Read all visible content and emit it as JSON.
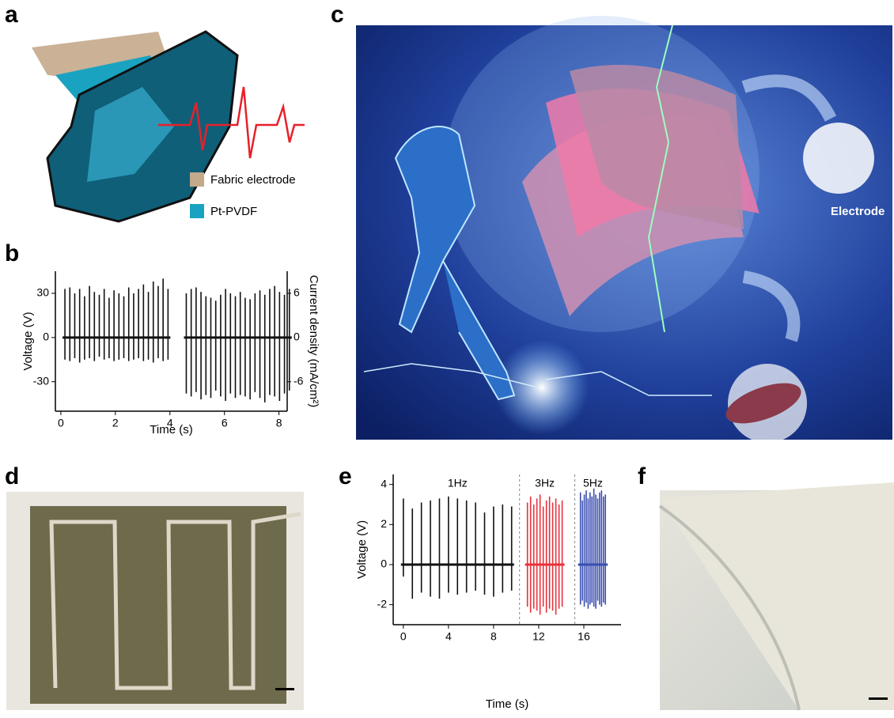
{
  "panel_labels": [
    "a",
    "b",
    "c",
    "d",
    "e",
    "f"
  ],
  "panel_a": {
    "legend": [
      "Fabric electrode",
      "Pt-PVDF"
    ]
  },
  "panel_c": {
    "callout": "Electrode"
  },
  "chart_data": [
    {
      "type": "spike",
      "xlabel": "Time (s)",
      "ylabel": "Voltage (V)",
      "y2label": "Current density (mA/cm²)",
      "xlim": [
        -0.2,
        8.3
      ],
      "xticks": [
        0,
        2,
        4,
        6,
        8
      ],
      "ylim": [
        -50,
        45
      ],
      "yticks": [
        -30,
        0,
        30
      ],
      "y2lim": [
        -10,
        9
      ],
      "y2ticks": [
        -6,
        0,
        6
      ],
      "series": [
        {
          "color": "#111111",
          "x": [
            0.15,
            0.33,
            0.51,
            0.69,
            0.87,
            1.05,
            1.23,
            1.41,
            1.59,
            1.77,
            1.95,
            2.13,
            2.31,
            2.49,
            2.67,
            2.85,
            3.03,
            3.21,
            3.39,
            3.57,
            3.75,
            3.93
          ],
          "peaks": [
            33,
            34,
            30,
            33,
            28,
            35,
            31,
            29,
            33,
            27,
            32,
            30,
            28,
            34,
            30,
            33,
            36,
            31,
            38,
            35,
            40,
            33
          ],
          "troughs": [
            -15,
            -16,
            -14,
            -17,
            -15,
            -14,
            -16,
            -13,
            -15,
            -14,
            -16,
            -15,
            -14,
            -16,
            -15,
            -14,
            -16,
            -15,
            -17,
            -14,
            -16,
            -15
          ]
        },
        {
          "color": "#111111",
          "x": [
            4.6,
            4.78,
            4.96,
            5.14,
            5.32,
            5.5,
            5.68,
            5.86,
            6.04,
            6.22,
            6.4,
            6.58,
            6.76,
            6.94,
            7.12,
            7.3,
            7.48,
            7.66,
            7.84,
            8.02,
            8.2,
            8.38
          ],
          "peaks": [
            30,
            33,
            34,
            31,
            28,
            27,
            25,
            29,
            33,
            30,
            28,
            31,
            27,
            26,
            30,
            32,
            29,
            33,
            35,
            31,
            29,
            33
          ],
          "troughs": [
            -38,
            -40,
            -37,
            -42,
            -39,
            -41,
            -36,
            -40,
            -43,
            -38,
            -41,
            -39,
            -40,
            -42,
            -37,
            -41,
            -44,
            -39,
            -40,
            -43,
            -38,
            -36
          ]
        }
      ]
    },
    {
      "type": "spike",
      "xlabel": "Time (s)",
      "ylabel": "Voltage (V)",
      "xlim": [
        -0.9,
        19.3
      ],
      "xticks": [
        0,
        4,
        8,
        12,
        16
      ],
      "ylim": [
        -3,
        4.5
      ],
      "yticks": [
        -2,
        0,
        2,
        4
      ],
      "separators": [
        10.3,
        15.2
      ],
      "series": [
        {
          "name": "1Hz",
          "color": "#111111",
          "x": [
            0,
            0.8,
            1.6,
            2.4,
            3.2,
            4.0,
            4.8,
            5.6,
            6.4,
            7.2,
            8.0,
            8.8,
            9.6
          ],
          "peaks": [
            3.3,
            2.8,
            3.1,
            3.2,
            3.3,
            3.4,
            3.3,
            3.2,
            3.1,
            2.6,
            2.9,
            3.0,
            2.9
          ],
          "troughs": [
            -0.6,
            -1.7,
            -1.4,
            -1.6,
            -1.7,
            -1.4,
            -1.5,
            -1.4,
            -1.3,
            -1.5,
            -1.6,
            -1.4,
            -1.3
          ]
        },
        {
          "name": "3Hz",
          "color": "#e8303a",
          "x": [
            11.0,
            11.28,
            11.56,
            11.84,
            12.12,
            12.4,
            12.68,
            12.96,
            13.24,
            13.52,
            13.8,
            14.08
          ],
          "peaks": [
            3.1,
            3.4,
            3.0,
            3.3,
            3.5,
            2.9,
            3.2,
            3.4,
            3.1,
            3.3,
            3.0,
            3.2
          ],
          "troughs": [
            -2.1,
            -2.4,
            -2.2,
            -2.3,
            -2.5,
            -2.1,
            -2.4,
            -2.2,
            -2.3,
            -2.5,
            -2.2,
            -2.1
          ]
        },
        {
          "name": "5Hz",
          "color": "#3a4fb0",
          "x": [
            15.7,
            15.87,
            16.04,
            16.21,
            16.38,
            16.55,
            16.72,
            16.89,
            17.06,
            17.23,
            17.4,
            17.57,
            17.74,
            17.91
          ],
          "peaks": [
            3.6,
            3.2,
            3.5,
            3.7,
            3.3,
            3.6,
            3.4,
            3.8,
            3.5,
            3.3,
            3.6,
            3.7,
            3.4,
            3.5
          ],
          "troughs": [
            -2.0,
            -1.8,
            -2.1,
            -1.9,
            -2.2,
            -2.0,
            -1.9,
            -2.1,
            -2.2,
            -1.8,
            -2.0,
            -2.1,
            -1.9,
            -2.0
          ]
        }
      ]
    }
  ]
}
